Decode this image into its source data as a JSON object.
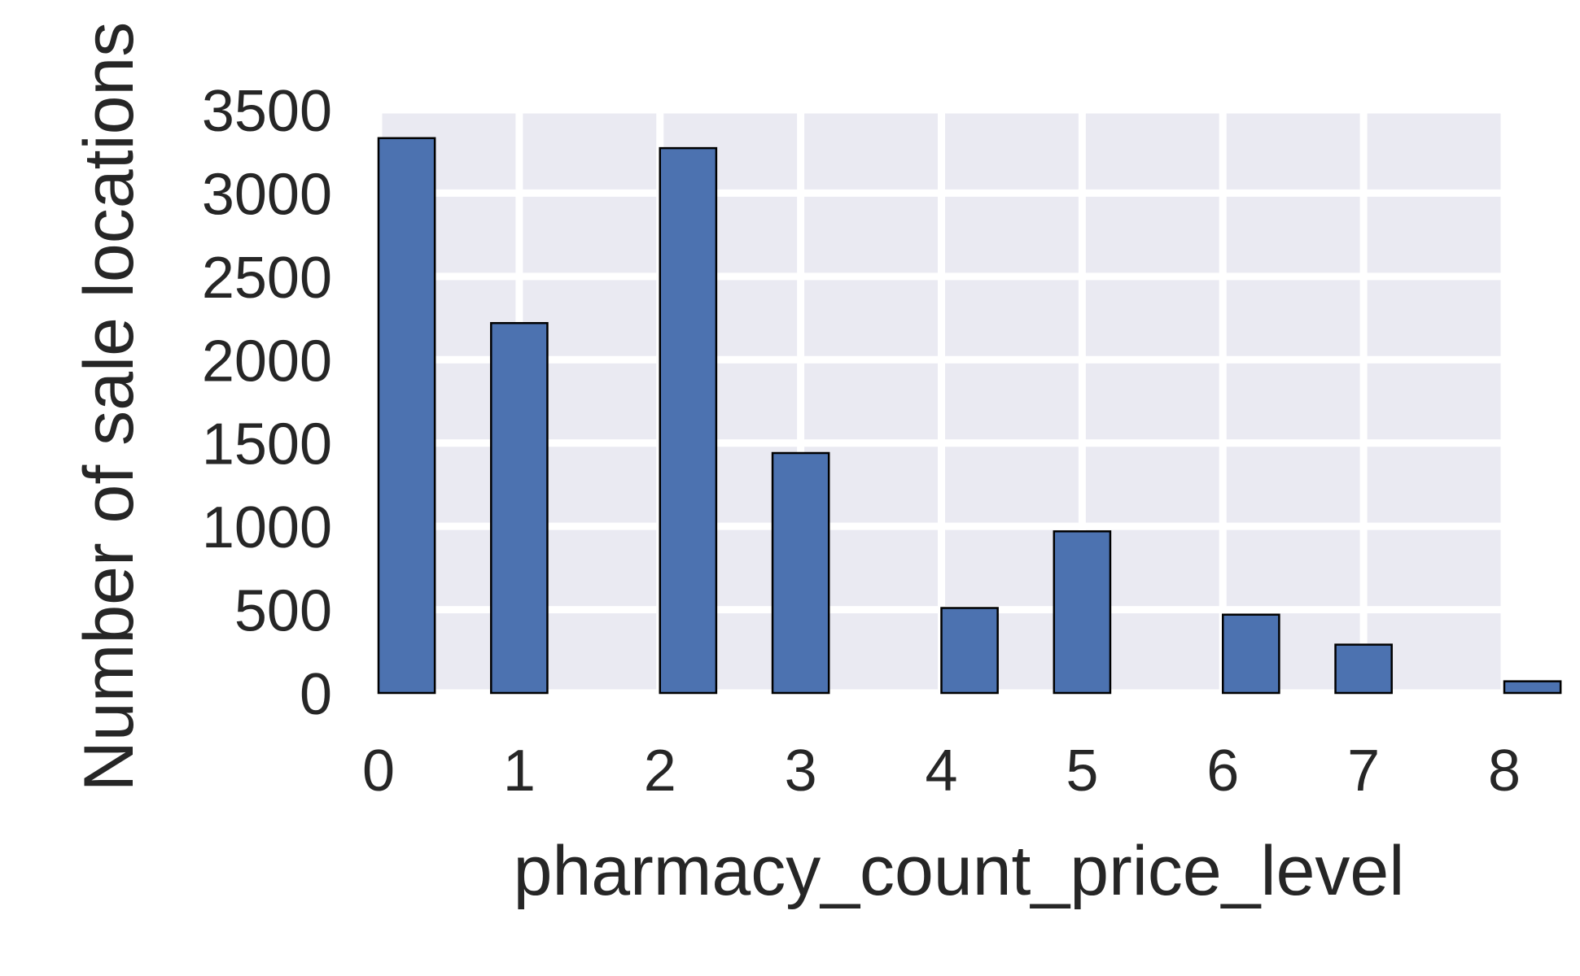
{
  "chart_data": {
    "type": "bar",
    "xlabel": "pharmacy_count_price_level",
    "ylabel": "Number of sale locations",
    "xlim": [
      0,
      8
    ],
    "ylim": [
      0,
      3500
    ],
    "x_ticks": [
      "0",
      "1",
      "2",
      "3",
      "4",
      "5",
      "6",
      "7",
      "8"
    ],
    "y_ticks": [
      "0",
      "500",
      "1000",
      "1500",
      "2000",
      "2500",
      "3000",
      "3500"
    ],
    "bars": [
      {
        "x0": 0.0,
        "x1": 0.4,
        "value": 3330
      },
      {
        "x0": 0.8,
        "x1": 1.2,
        "value": 2220
      },
      {
        "x0": 2.0,
        "x1": 2.4,
        "value": 3270
      },
      {
        "x0": 2.8,
        "x1": 3.2,
        "value": 1440
      },
      {
        "x0": 4.0,
        "x1": 4.4,
        "value": 510
      },
      {
        "x0": 4.8,
        "x1": 5.2,
        "value": 970
      },
      {
        "x0": 6.0,
        "x1": 6.4,
        "value": 470
      },
      {
        "x0": 6.8,
        "x1": 7.2,
        "value": 290
      },
      {
        "x0": 8.0,
        "x1": 8.4,
        "value": 70
      }
    ],
    "grid": true,
    "colors": {
      "bar": "#4c72b0",
      "plot_background": "#eaeaf2",
      "grid": "#ffffff",
      "text": "#262626"
    }
  }
}
